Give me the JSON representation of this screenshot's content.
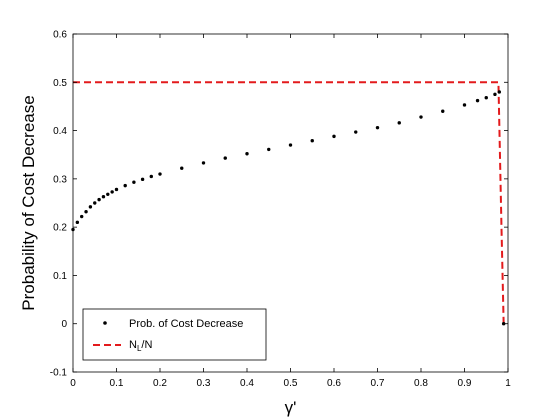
{
  "chart_data": {
    "type": "line",
    "title": "",
    "xlabel": "γ'",
    "ylabel": "Probability of Cost Decrease",
    "xlim": [
      0,
      1
    ],
    "ylim": [
      -0.1,
      0.6
    ],
    "xticks": [
      "0",
      "0.1",
      "0.2",
      "0.3",
      "0.4",
      "0.5",
      "0.6",
      "0.7",
      "0.8",
      "0.9",
      "1"
    ],
    "yticks": [
      "-0.1",
      "0",
      "0.1",
      "0.2",
      "0.3",
      "0.4",
      "0.5",
      "0.6"
    ],
    "grid": false,
    "legend_position": "bottom-left",
    "series": [
      {
        "name": "Prob. of Cost Decrease",
        "style": "markers",
        "color": "#000000",
        "x": [
          0.0,
          0.01,
          0.02,
          0.03,
          0.04,
          0.05,
          0.06,
          0.07,
          0.08,
          0.09,
          0.1,
          0.12,
          0.14,
          0.16,
          0.18,
          0.2,
          0.25,
          0.3,
          0.35,
          0.4,
          0.45,
          0.5,
          0.55,
          0.6,
          0.65,
          0.7,
          0.75,
          0.8,
          0.85,
          0.9,
          0.93,
          0.95,
          0.97,
          0.98,
          0.99
        ],
        "y": [
          0.195,
          0.21,
          0.222,
          0.232,
          0.242,
          0.25,
          0.257,
          0.263,
          0.268,
          0.273,
          0.278,
          0.286,
          0.293,
          0.299,
          0.305,
          0.31,
          0.322,
          0.333,
          0.343,
          0.352,
          0.361,
          0.37,
          0.379,
          0.388,
          0.397,
          0.406,
          0.416,
          0.428,
          0.44,
          0.453,
          0.462,
          0.468,
          0.475,
          0.48,
          0.0
        ]
      },
      {
        "name": "N_L/N",
        "legend_label": "N",
        "legend_subscript": "L",
        "legend_suffix": "/N",
        "style": "dashed-line",
        "color": "#e31a1c",
        "x": [
          0.0,
          0.978,
          0.985,
          0.99
        ],
        "y": [
          0.5,
          0.5,
          0.2,
          0.0
        ]
      }
    ]
  }
}
